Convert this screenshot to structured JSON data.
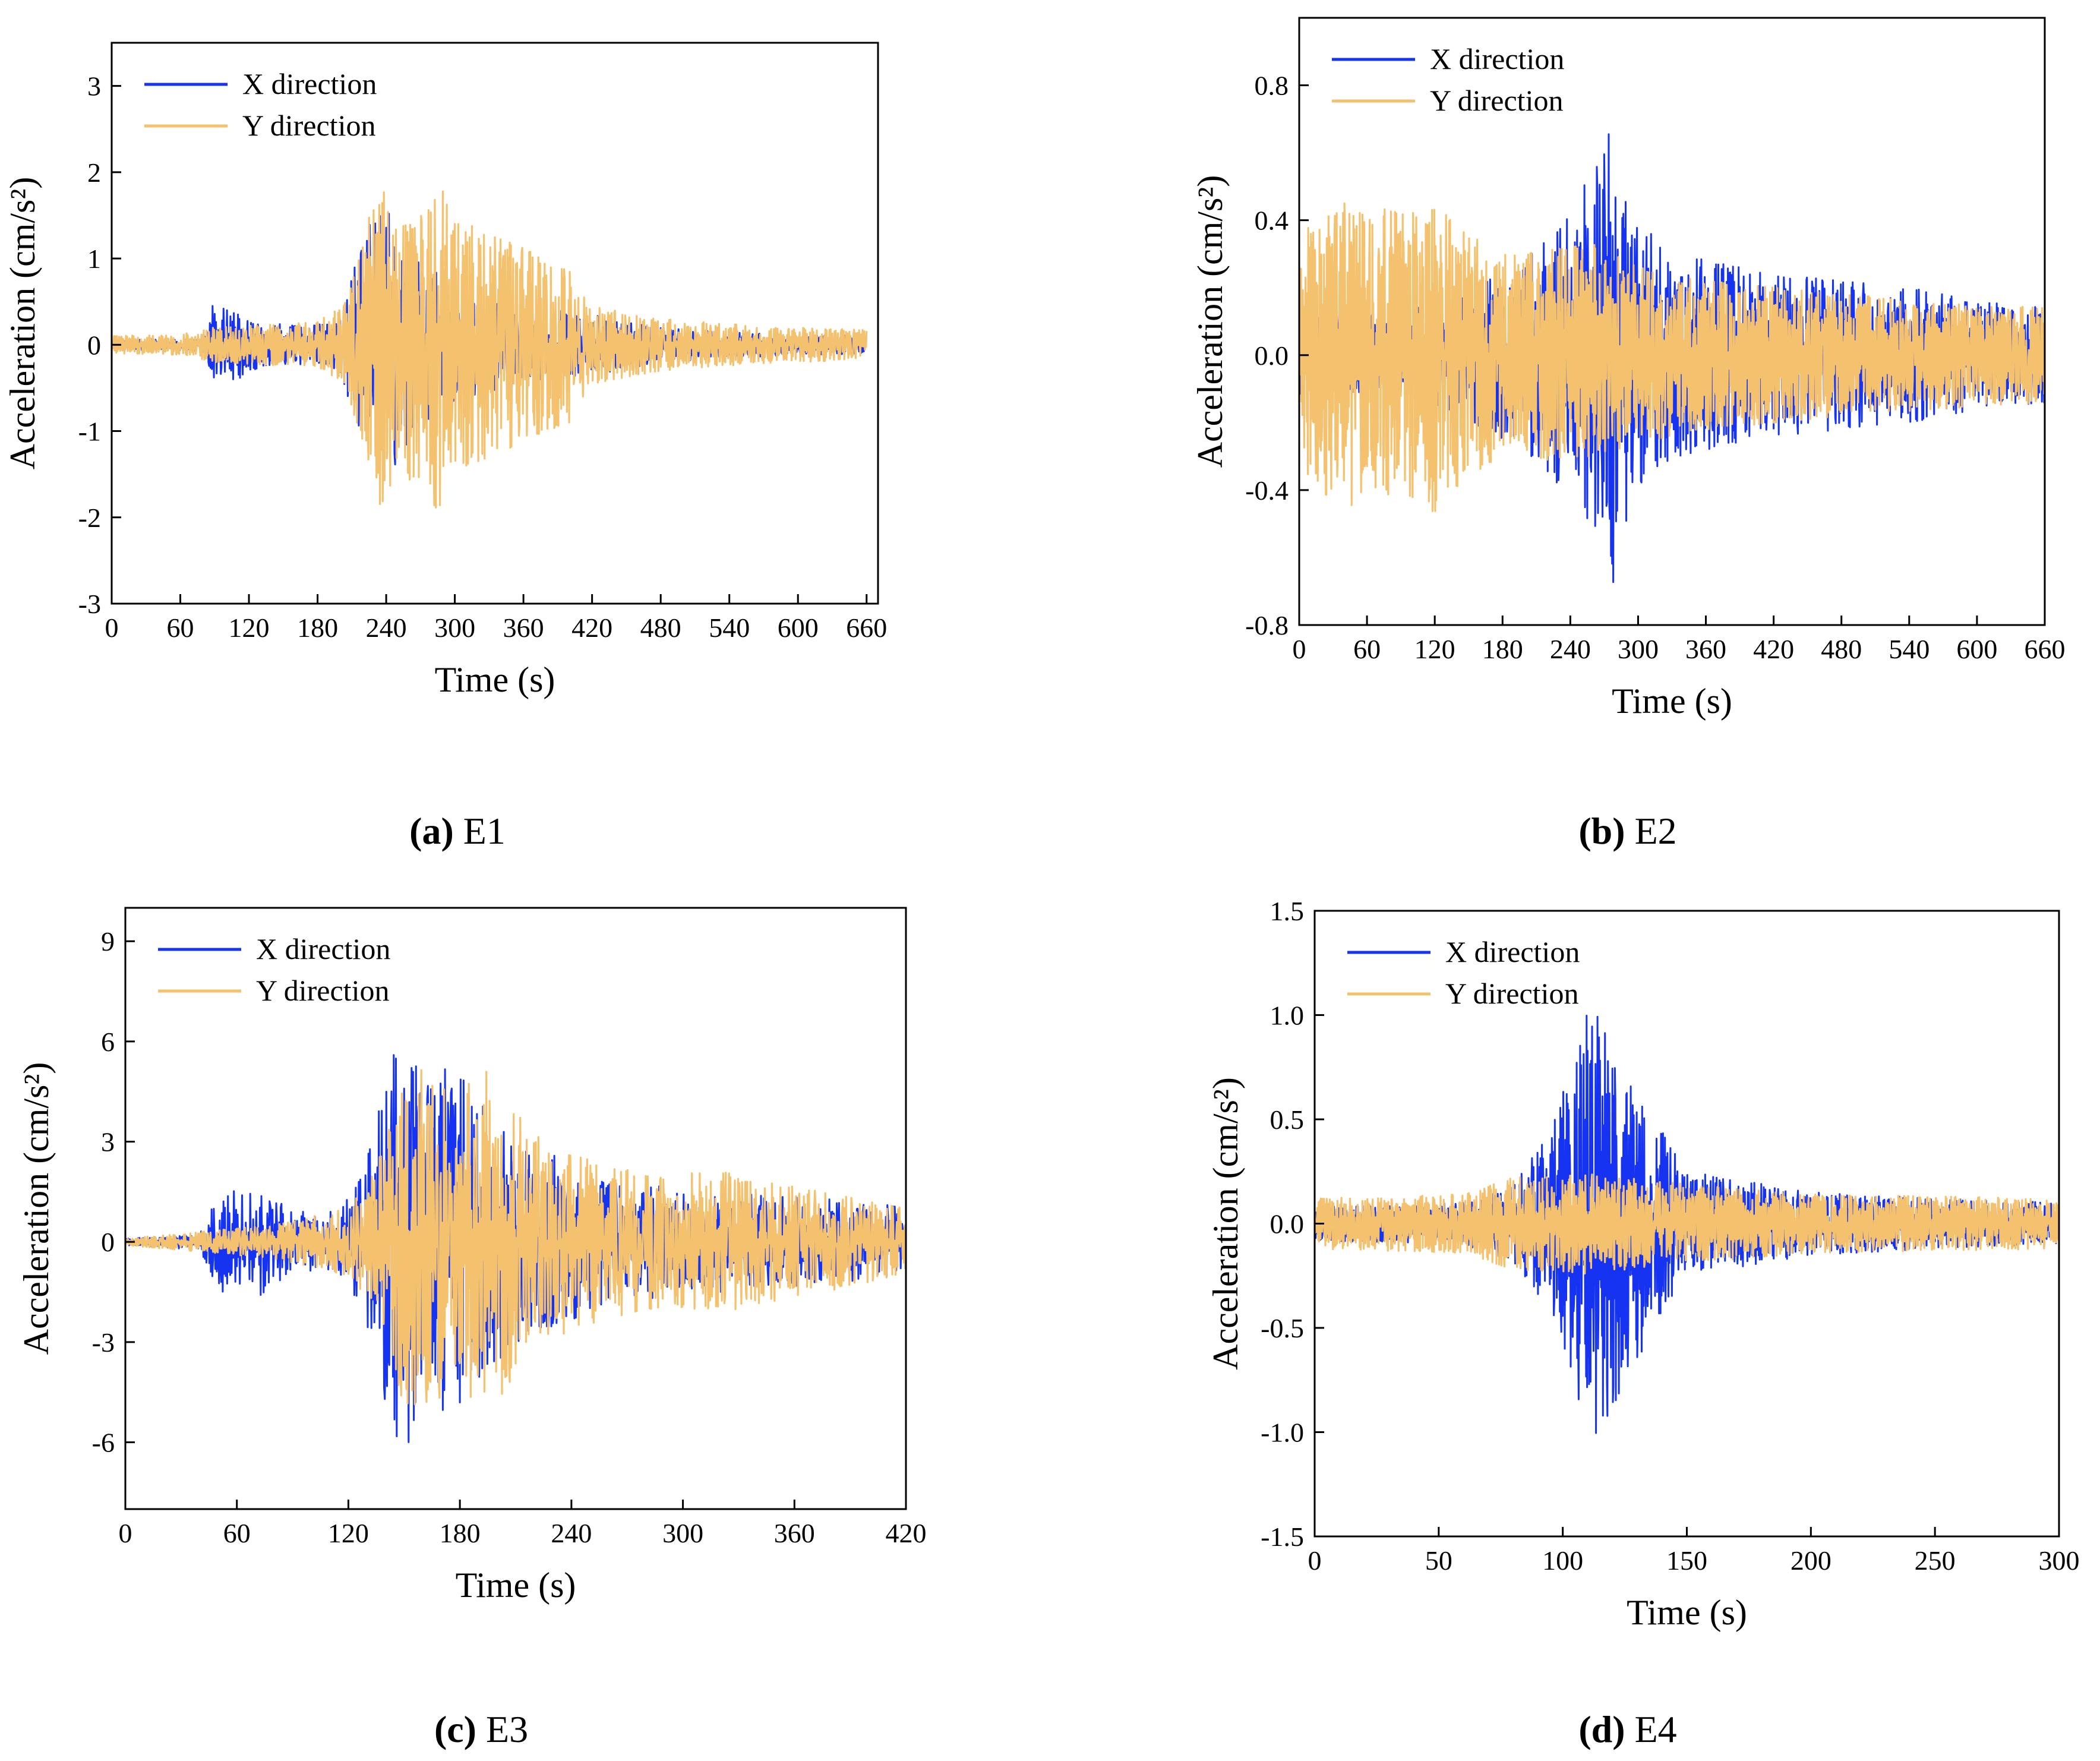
{
  "colors": {
    "x_direction": "#1533f0",
    "y_direction": "#f4c26e",
    "axis": "#000000"
  },
  "chart_data": [
    {
      "id": "E1",
      "caption": {
        "letter": "(a)",
        "event": "E1"
      },
      "type": "line",
      "xlabel": "Time (s)",
      "ylabel": "Acceleration (cm/s²)",
      "xlim": [
        0,
        670
      ],
      "ylim": [
        -3,
        3.5
      ],
      "xticks": [
        0,
        60,
        120,
        180,
        240,
        300,
        360,
        420,
        480,
        540,
        600,
        660
      ],
      "yticks": [
        -3,
        -2,
        -1,
        0,
        1,
        2,
        3
      ],
      "ytick_labels": [
        "-3",
        "-2",
        "-1",
        "0",
        "1",
        "2",
        "3"
      ],
      "legend": [
        "X direction",
        "Y direction"
      ],
      "legend_position": "top-left",
      "series": [
        {
          "name": "X direction",
          "duration": 660,
          "seed": 11,
          "dt": 0.6,
          "envelope": [
            [
              0,
              0.06
            ],
            [
              80,
              0.07
            ],
            [
              88,
              0.45
            ],
            [
              110,
              0.4
            ],
            [
              130,
              0.25
            ],
            [
              175,
              0.22
            ],
            [
              200,
              0.3
            ],
            [
              215,
              1.05
            ],
            [
              228,
              1.9
            ],
            [
              245,
              1.45
            ],
            [
              265,
              1.0
            ],
            [
              300,
              0.7
            ],
            [
              360,
              0.45
            ],
            [
              420,
              0.35
            ],
            [
              480,
              0.2
            ],
            [
              560,
              0.14
            ],
            [
              660,
              0.1
            ]
          ]
        },
        {
          "name": "Y direction",
          "duration": 660,
          "seed": 23,
          "dt": 0.5,
          "envelope": [
            [
              0,
              0.1
            ],
            [
              60,
              0.12
            ],
            [
              90,
              0.2
            ],
            [
              180,
              0.26
            ],
            [
              205,
              0.5
            ],
            [
              222,
              1.3
            ],
            [
              235,
              2.05
            ],
            [
              250,
              1.5
            ],
            [
              275,
              1.65
            ],
            [
              285,
              1.95
            ],
            [
              300,
              1.45
            ],
            [
              340,
              1.25
            ],
            [
              370,
              1.05
            ],
            [
              400,
              0.9
            ],
            [
              420,
              0.45
            ],
            [
              480,
              0.3
            ],
            [
              560,
              0.22
            ],
            [
              660,
              0.17
            ]
          ]
        }
      ]
    },
    {
      "id": "E2",
      "caption": {
        "letter": "(b)",
        "event": "E2"
      },
      "type": "line",
      "xlabel": "Time (s)",
      "ylabel": "Acceleration (cm/s²)",
      "xlim": [
        0,
        660
      ],
      "ylim": [
        -0.8,
        1.0
      ],
      "xticks": [
        0,
        60,
        120,
        180,
        240,
        300,
        360,
        420,
        480,
        540,
        600,
        660
      ],
      "yticks": [
        -0.8,
        -0.4,
        0.0,
        0.4,
        0.8
      ],
      "ytick_labels": [
        "-0.8",
        "-0.4",
        "0.0",
        "0.4",
        "0.8"
      ],
      "legend": [
        "X direction",
        "Y direction"
      ],
      "legend_position": "top-left",
      "series": [
        {
          "name": "X direction",
          "duration": 660,
          "seed": 37,
          "dt": 0.5,
          "envelope": [
            [
              0,
              0.12
            ],
            [
              120,
              0.15
            ],
            [
              200,
              0.28
            ],
            [
              240,
              0.42
            ],
            [
              262,
              0.58
            ],
            [
              278,
              0.68
            ],
            [
              292,
              0.45
            ],
            [
              320,
              0.32
            ],
            [
              360,
              0.28
            ],
            [
              420,
              0.24
            ],
            [
              480,
              0.22
            ],
            [
              540,
              0.2
            ],
            [
              600,
              0.16
            ],
            [
              660,
              0.14
            ]
          ]
        },
        {
          "name": "Y direction",
          "duration": 660,
          "seed": 41,
          "dt": 0.4,
          "envelope": [
            [
              0,
              0.36
            ],
            [
              40,
              0.45
            ],
            [
              100,
              0.42
            ],
            [
              120,
              0.47
            ],
            [
              150,
              0.35
            ],
            [
              200,
              0.3
            ],
            [
              260,
              0.33
            ],
            [
              300,
              0.26
            ],
            [
              360,
              0.22
            ],
            [
              420,
              0.2
            ],
            [
              480,
              0.18
            ],
            [
              560,
              0.16
            ],
            [
              660,
              0.14
            ]
          ]
        }
      ]
    },
    {
      "id": "E3",
      "caption": {
        "letter": "(c)",
        "event": "E3"
      },
      "type": "line",
      "xlabel": "Time (s)",
      "ylabel": "Acceleration (cm/s²)",
      "xlim": [
        0,
        420
      ],
      "ylim": [
        -8,
        10
      ],
      "xticks": [
        0,
        60,
        120,
        180,
        240,
        300,
        360,
        420
      ],
      "yticks": [
        -6,
        -3,
        0,
        3,
        6,
        9
      ],
      "ytick_labels": [
        "-6",
        "-3",
        "0",
        "3",
        "6",
        "9"
      ],
      "legend": [
        "X direction",
        "Y direction"
      ],
      "legend_position": "top-left",
      "series": [
        {
          "name": "X direction",
          "duration": 420,
          "seed": 53,
          "dt": 0.4,
          "envelope": [
            [
              0,
              0.1
            ],
            [
              40,
              0.25
            ],
            [
              50,
              1.5
            ],
            [
              70,
              1.7
            ],
            [
              90,
              0.9
            ],
            [
              115,
              0.9
            ],
            [
              128,
              2.0
            ],
            [
              140,
              4.8
            ],
            [
              150,
              6.6
            ],
            [
              160,
              4.5
            ],
            [
              175,
              5.4
            ],
            [
              190,
              4.2
            ],
            [
              210,
              3.0
            ],
            [
              230,
              2.6
            ],
            [
              260,
              1.8
            ],
            [
              300,
              1.6
            ],
            [
              340,
              1.4
            ],
            [
              400,
              1.2
            ],
            [
              420,
              1.0
            ]
          ]
        },
        {
          "name": "Y direction",
          "duration": 420,
          "seed": 67,
          "dt": 0.35,
          "envelope": [
            [
              0,
              0.1
            ],
            [
              40,
              0.3
            ],
            [
              80,
              0.5
            ],
            [
              120,
              1.0
            ],
            [
              135,
              2.2
            ],
            [
              148,
              4.6
            ],
            [
              158,
              5.2
            ],
            [
              175,
              4.4
            ],
            [
              195,
              5.2
            ],
            [
              215,
              3.5
            ],
            [
              240,
              2.6
            ],
            [
              280,
              2.0
            ],
            [
              320,
              2.1
            ],
            [
              360,
              1.7
            ],
            [
              400,
              1.2
            ],
            [
              420,
              1.0
            ]
          ]
        }
      ]
    },
    {
      "id": "E4",
      "caption": {
        "letter": "(d)",
        "event": "E4"
      },
      "type": "line",
      "xlabel": "Time (s)",
      "ylabel": "Acceleration (cm/s²)",
      "xlim": [
        0,
        300
      ],
      "ylim": [
        -1.5,
        1.5
      ],
      "xticks": [
        0,
        50,
        100,
        150,
        200,
        250,
        300
      ],
      "yticks": [
        -1.5,
        -1.0,
        -0.5,
        0.0,
        0.5,
        1.0,
        1.5
      ],
      "ytick_labels": [
        "-1.5",
        "-1.0",
        "-0.5",
        "0.0",
        "0.5",
        "1.0",
        "1.5"
      ],
      "legend": [
        "X direction",
        "Y direction"
      ],
      "legend_position": "top-left",
      "series": [
        {
          "name": "X direction",
          "duration": 300,
          "seed": 79,
          "dt": 0.2,
          "envelope": [
            [
              0,
              0.08
            ],
            [
              60,
              0.1
            ],
            [
              80,
              0.18
            ],
            [
              95,
              0.45
            ],
            [
              105,
              0.8
            ],
            [
              112,
              1.1
            ],
            [
              125,
              0.75
            ],
            [
              135,
              0.55
            ],
            [
              150,
              0.25
            ],
            [
              200,
              0.15
            ],
            [
              250,
              0.12
            ],
            [
              300,
              0.1
            ]
          ]
        },
        {
          "name": "Y direction",
          "duration": 300,
          "seed": 83,
          "dt": 0.18,
          "envelope": [
            [
              0,
              0.12
            ],
            [
              60,
              0.14
            ],
            [
              80,
              0.22
            ],
            [
              110,
              0.24
            ],
            [
              140,
              0.2
            ],
            [
              200,
              0.14
            ],
            [
              300,
              0.12
            ]
          ]
        }
      ]
    }
  ]
}
